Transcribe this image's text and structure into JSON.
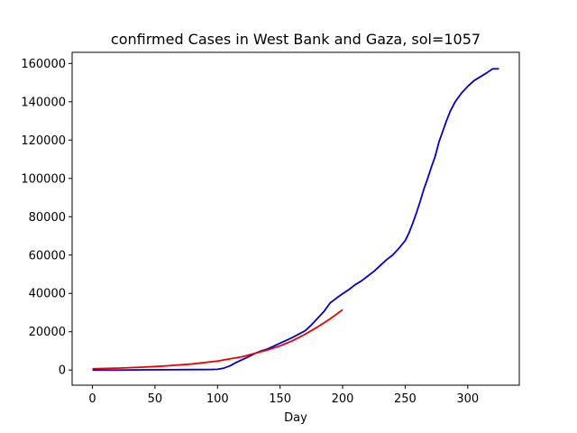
{
  "chart_data": {
    "type": "line",
    "title": "confirmed Cases in West Bank and Gaza, sol=1057",
    "xlabel": "Day",
    "ylabel": "",
    "xlim": [
      -16.25,
      341.25
    ],
    "ylim": [
      -7900,
      165800
    ],
    "xticks": [
      0,
      50,
      100,
      150,
      200,
      250,
      300
    ],
    "yticks": [
      0,
      20000,
      40000,
      60000,
      80000,
      100000,
      120000,
      140000,
      160000
    ],
    "grid": false,
    "legend": "none",
    "series": [
      {
        "color": "#0000cc",
        "x": [
          0,
          20,
          40,
          60,
          80,
          95,
          100,
          105,
          110,
          115,
          120,
          125,
          130,
          135,
          140,
          145,
          150,
          155,
          160,
          165,
          170,
          175,
          180,
          185,
          190,
          193,
          196,
          200,
          205,
          210,
          215,
          220,
          225,
          230,
          235,
          240,
          245,
          250,
          253,
          256,
          259,
          262,
          265,
          268,
          271,
          274,
          277,
          280,
          283,
          286,
          290,
          295,
          300,
          305,
          310,
          315,
          320,
          325
        ],
        "y": [
          0,
          0,
          100,
          150,
          250,
          300,
          400,
          1000,
          2200,
          4000,
          5500,
          7000,
          8700,
          10000,
          11000,
          12500,
          14000,
          15500,
          17000,
          18800,
          20500,
          23500,
          27000,
          30500,
          35000,
          36500,
          38000,
          39800,
          42000,
          44500,
          46500,
          49000,
          51500,
          54500,
          57500,
          60000,
          63500,
          67500,
          71500,
          76500,
          82000,
          88000,
          94500,
          100000,
          106000,
          111500,
          119000,
          124500,
          130000,
          135000,
          140000,
          144500,
          148000,
          151000,
          153000,
          155000,
          157200,
          157200
        ]
      },
      {
        "color": "#ee0000",
        "x": [
          0,
          20,
          40,
          60,
          80,
          100,
          120,
          140,
          150,
          160,
          170,
          180,
          190,
          200
        ],
        "y": [
          700,
          1000,
          1500,
          2200,
          3200,
          4700,
          7000,
          10500,
          12600,
          15300,
          18700,
          22500,
          26700,
          31500
        ]
      }
    ]
  }
}
